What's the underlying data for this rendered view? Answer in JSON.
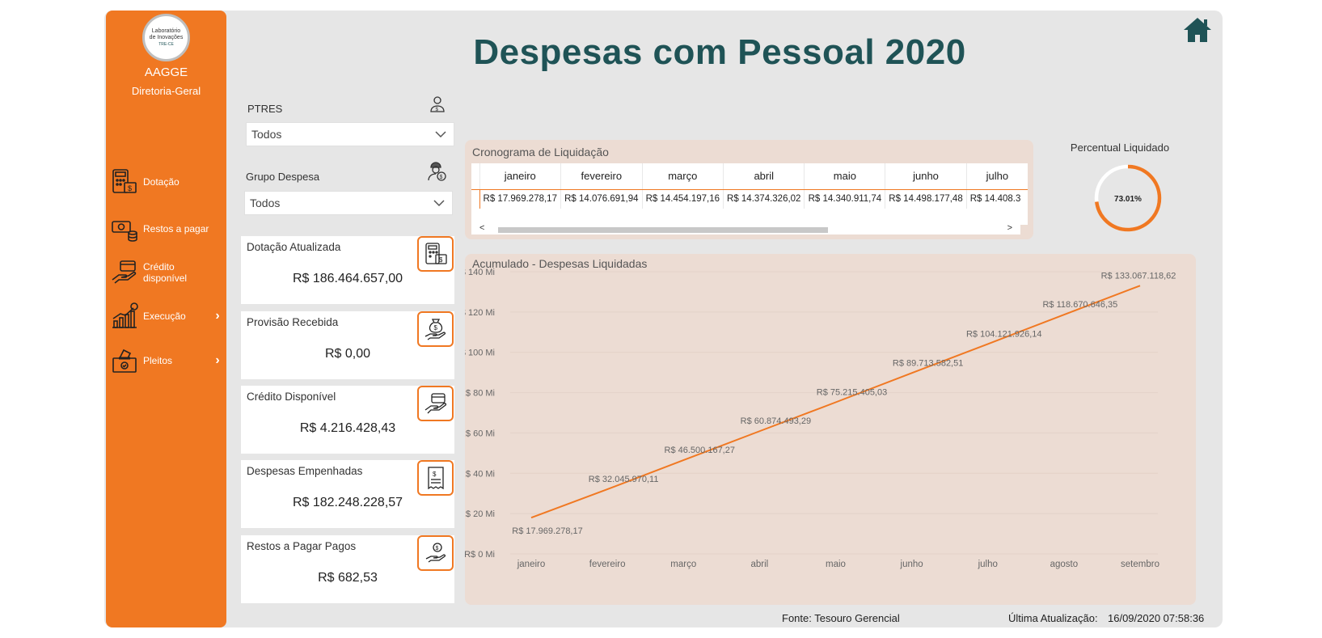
{
  "title": "Despesas com Pessoal 2020",
  "sidebar": {
    "logo_text": [
      "Laboratório",
      "de Inovações",
      "TRE-CE"
    ],
    "org_name": "AAGGE",
    "org_sub": "Diretoria-Geral",
    "items": [
      {
        "label": "Dotação",
        "icon": "calculator-money-icon",
        "chevron": ""
      },
      {
        "label": "Restos a pagar",
        "icon": "coins-icon",
        "chevron": ""
      },
      {
        "label": "Crédito disponível",
        "icon": "hand-card-icon",
        "chevron": ""
      },
      {
        "label": "Execução",
        "icon": "growth-chart-icon",
        "chevron": "›"
      },
      {
        "label": "Pleitos",
        "icon": "ballot-box-icon",
        "chevron": "›"
      }
    ]
  },
  "filters": {
    "ptres_label": "PTRES",
    "ptres_value": "Todos",
    "grupo_label": "Grupo Despesa",
    "grupo_value": "Todos"
  },
  "cards": [
    {
      "title": "Dotação Atualizada",
      "value": "R$ 186.464.657,00",
      "icon": "calculator-money-icon"
    },
    {
      "title": "Provisão Recebida",
      "value": "R$ 0,00",
      "icon": "money-bag-hand-icon"
    },
    {
      "title": "Crédito Disponível",
      "value": "R$ 4.216.428,43",
      "icon": "hand-card-icon"
    },
    {
      "title": "Despesas Empenhadas",
      "value": "R$ 182.248.228,57",
      "icon": "receipt-icon"
    },
    {
      "title": "Restos a Pagar Pagos",
      "value": "R$ 682,53",
      "icon": "hand-coin-icon"
    }
  ],
  "cronograma": {
    "title": "Cronograma de Liquidação",
    "months": [
      "janeiro",
      "fevereiro",
      "março",
      "abril",
      "maio",
      "junho",
      "julho"
    ],
    "values": [
      "R$ 17.969.278,17",
      "R$ 14.076.691,94",
      "R$ 14.454.197,16",
      "R$ 14.374.326,02",
      "R$ 14.340.911,74",
      "R$ 14.498.177,48",
      "R$ 14.408.3"
    ],
    "scroll_left": "<",
    "scroll_right": ">"
  },
  "gauge": {
    "title": "Percentual Liquidado",
    "value": 0.7301,
    "label": "73.01%"
  },
  "chart_data": {
    "type": "line",
    "title": "Acumulado - Despesas Liquidadas",
    "categories": [
      "janeiro",
      "fevereiro",
      "março",
      "abril",
      "maio",
      "junho",
      "julho",
      "agosto",
      "setembro"
    ],
    "values": [
      17969278.17,
      32045970.11,
      46500167.27,
      60874493.29,
      75215405.03,
      89713582.51,
      104121926.14,
      118670646.35,
      133067118.62
    ],
    "data_labels": [
      "R$ 17.969.278,17",
      "R$ 32.045.970,11",
      "R$ 46.500.167,27",
      "R$ 60.874.493,29",
      "R$ 75.215.405,03",
      "R$ 89.713.582,51",
      "R$ 104.121.926,14",
      "R$ 118.670.646,35",
      "R$ 133.067.118,62"
    ],
    "y_ticks": [
      "R$ 0 Mi",
      "R$ 20 Mi",
      "R$ 40 Mi",
      "R$ 60 Mi",
      "R$ 80 Mi",
      "R$ 100 Mi",
      "R$ 120 Mi",
      "R$ 140 Mi"
    ],
    "ylim": [
      0,
      140000000
    ],
    "grid": true,
    "color": "#f07822"
  },
  "footer": {
    "source": "Fonte: Tesouro Gerencial",
    "updated_label": "Última Atualização:",
    "updated_value": "16/09/2020 07:58:36"
  },
  "colors": {
    "accent": "#f07822",
    "title": "#1f5356",
    "panel": "#ecdcd3",
    "background": "#e6e6e6"
  }
}
